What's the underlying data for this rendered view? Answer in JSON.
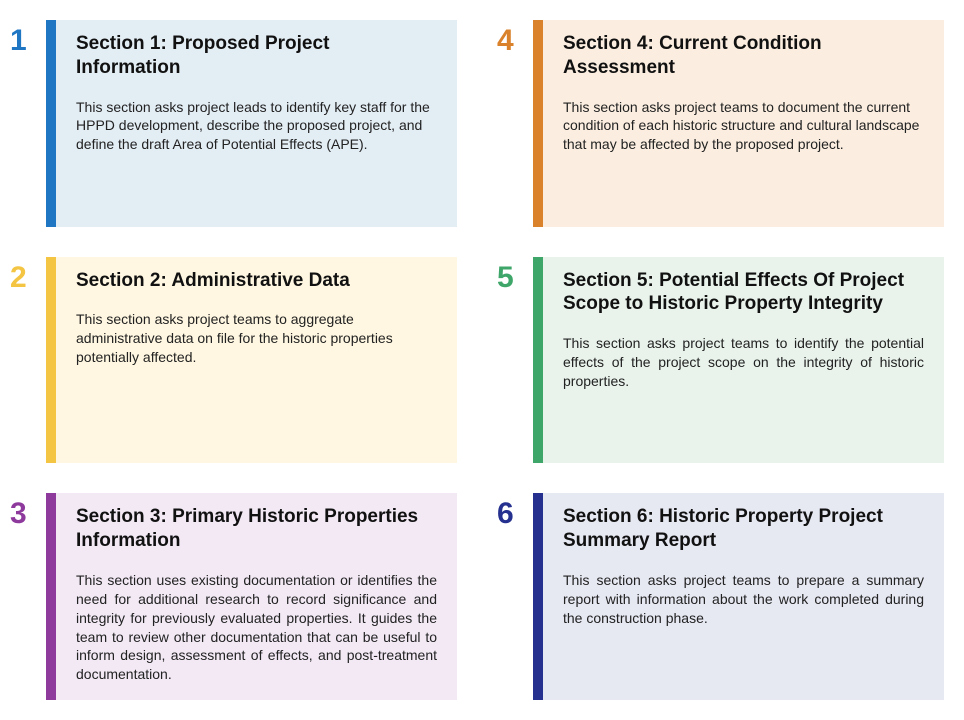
{
  "sections": [
    {
      "num": "1",
      "title": "Section 1: Proposed Project Information",
      "desc": "This section asks project leads to identify key staff for the HPPD development, describe the proposed project, and define the draft Area of Potential Effects (APE).",
      "num_color": "#1f77c4",
      "accent_color": "#1f77c4",
      "bg_color": "#e3edf4",
      "justify": false
    },
    {
      "num": "2",
      "title": "Section 2: Administrative Data",
      "desc": "This section asks project teams to aggregate administrative data on file for the historic properties potentially affected.",
      "num_color": "#f4c542",
      "accent_color": "#f4c542",
      "bg_color": "#fff7e1",
      "justify": false
    },
    {
      "num": "3",
      "title": "Section 3: Primary Historic Properties Information",
      "desc": "This section uses existing documentation or identifies the need for additional research to record significance and integrity for previously evaluated properties. It guides the team to review other documentation that can be useful  to inform design, assessment of effects, and post-treatment documentation.",
      "num_color": "#8e3a9d",
      "accent_color": "#8e3a9d",
      "bg_color": "#f2e9f5",
      "justify": true
    },
    {
      "num": "4",
      "title": "Section 4: Current Condition Assessment",
      "desc": "This section asks project teams to document the current condition of each historic structure and cultural landscape that may be affected by the proposed project.",
      "num_color": "#d9822b",
      "accent_color": "#d9822b",
      "bg_color": "#fbeee0",
      "justify": false
    },
    {
      "num": "5",
      "title": "Section 5: Potential Effects Of Project Scope to Historic Property Integrity",
      "desc": "This section asks project teams to identify the potential effects of the project scope on the integrity of historic properties.",
      "num_color": "#3fa66a",
      "accent_color": "#3fa66a",
      "bg_color": "#e9f3ec",
      "justify": true
    },
    {
      "num": "6",
      "title": "Section 6: Historic Property Project Summary Report",
      "desc": "This section asks project teams to prepare a summary report with information about the work completed during the construction phase.",
      "num_color": "#25308f",
      "accent_color": "#25308f",
      "bg_color": "#e6e8f2",
      "justify": true
    }
  ]
}
